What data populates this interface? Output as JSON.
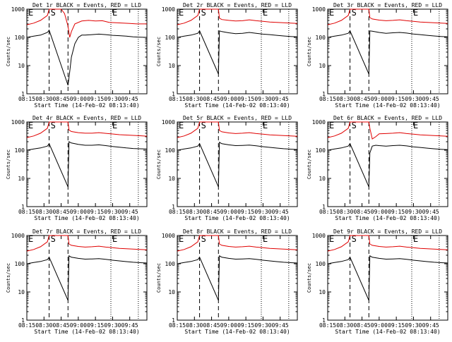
{
  "shared": {
    "xticks": [
      "08:15",
      "08:30",
      "08:45",
      "09:00",
      "09:15",
      "09:30",
      "09:45"
    ],
    "yticks": [
      "1",
      "10",
      "100",
      "1000"
    ],
    "ylabel": "Counts/sec",
    "xlabel": "Start Time (14-Feb-02 08:13:40)",
    "markers": {
      "E": "E",
      "S": "S"
    },
    "colors": {
      "events": "#000000",
      "lld": "#e00000"
    },
    "xlim_minutes_after_0815": [
      0,
      35
    ],
    "ylim": [
      1,
      1000
    ],
    "yscale": "log",
    "vlines_dashed_minutes": [
      6.5,
      12
    ],
    "vlines_dotted_minutes": [
      24.5,
      32.5
    ]
  },
  "chart_data": [
    {
      "type": "line",
      "title": "Det 1r BLACK = Events, RED = LLD",
      "dip": "deep",
      "series": [
        {
          "name": "Events",
          "x": [
            0,
            2,
            4,
            6,
            6.5,
            12,
            12.5,
            13,
            14,
            15,
            16,
            17,
            19,
            21,
            23,
            25,
            27,
            29,
            31,
            33,
            35
          ],
          "y": [
            100,
            110,
            120,
            150,
            180,
            2,
            6,
            20,
            60,
            100,
            120,
            120,
            125,
            130,
            125,
            118,
            115,
            110,
            105,
            102,
            100
          ]
        },
        {
          "name": "LLD",
          "x": [
            0,
            2,
            4,
            6,
            6.5,
            10,
            11,
            12,
            12.5,
            13,
            14,
            16,
            18,
            20,
            22,
            24,
            26,
            28,
            30,
            32,
            35
          ],
          "y": [
            280,
            320,
            400,
            600,
            1000,
            1000,
            700,
            250,
            100,
            160,
            300,
            380,
            400,
            380,
            390,
            340,
            330,
            320,
            310,
            300,
            300
          ]
        }
      ]
    },
    {
      "type": "line",
      "title": "Det 2r BLACK = Events, RED = LLD",
      "dip": "none",
      "series": [
        {
          "name": "Events",
          "x": [
            0,
            2,
            4,
            6,
            6.5,
            12,
            12.3,
            13,
            15,
            17,
            19,
            21,
            23,
            25,
            27,
            29,
            31,
            33,
            35
          ],
          "y": [
            100,
            110,
            120,
            140,
            170,
            5,
            170,
            160,
            145,
            135,
            140,
            150,
            140,
            130,
            125,
            118,
            112,
            108,
            105
          ],
          "_": ""
        },
        {
          "name": "LLD",
          "x": [
            0,
            2,
            4,
            6,
            6.5,
            12,
            12.3,
            13,
            15,
            17,
            19,
            21,
            23,
            25,
            27,
            29,
            31,
            33,
            35
          ],
          "y": [
            280,
            320,
            400,
            600,
            1000,
            1000,
            480,
            430,
            400,
            380,
            390,
            420,
            390,
            370,
            350,
            340,
            330,
            320,
            310
          ]
        }
      ]
    },
    {
      "type": "line",
      "title": "Det 3r BLACK = Events, RED = LLD",
      "dip": "none",
      "series": [
        {
          "name": "Events",
          "x": [
            0,
            2,
            4,
            6,
            6.5,
            12,
            12.3,
            13,
            15,
            17,
            19,
            21,
            23,
            25,
            27,
            29,
            31,
            33,
            35
          ],
          "y": [
            100,
            110,
            120,
            140,
            170,
            5,
            170,
            165,
            150,
            140,
            145,
            150,
            142,
            132,
            125,
            118,
            112,
            108,
            105
          ]
        },
        {
          "name": "LLD",
          "x": [
            0,
            2,
            4,
            6,
            6.5,
            12,
            12.3,
            13,
            15,
            17,
            19,
            21,
            23,
            25,
            27,
            29,
            31,
            33,
            35
          ],
          "y": [
            280,
            320,
            400,
            600,
            1000,
            1000,
            500,
            450,
            410,
            390,
            400,
            420,
            390,
            370,
            350,
            340,
            330,
            320,
            310
          ]
        }
      ]
    },
    {
      "type": "line",
      "title": "Det 4r BLACK = Events, RED = LLD",
      "dip": "none",
      "series": [
        {
          "name": "Events",
          "x": [
            0,
            2,
            4,
            6,
            6.5,
            12,
            12.3,
            13,
            15,
            17,
            19,
            21,
            23,
            25,
            27,
            29,
            31,
            33,
            35
          ],
          "y": [
            100,
            110,
            120,
            140,
            170,
            5,
            200,
            180,
            160,
            150,
            150,
            155,
            145,
            135,
            128,
            120,
            115,
            112,
            110
          ]
        },
        {
          "name": "LLD",
          "x": [
            0,
            2,
            4,
            6,
            6.5,
            12,
            12.3,
            13,
            15,
            17,
            19,
            21,
            23,
            25,
            27,
            29,
            31,
            33,
            35
          ],
          "y": [
            280,
            320,
            400,
            600,
            1000,
            1000,
            520,
            460,
            420,
            400,
            400,
            420,
            395,
            375,
            355,
            345,
            335,
            325,
            315
          ]
        }
      ]
    },
    {
      "type": "line",
      "title": "Det 5r BLACK = Events, RED = LLD",
      "dip": "none",
      "series": [
        {
          "name": "Events",
          "x": [
            0,
            2,
            4,
            6,
            6.5,
            12,
            12.3,
            13,
            15,
            17,
            19,
            21,
            23,
            25,
            27,
            29,
            31,
            33,
            35
          ],
          "y": [
            100,
            110,
            120,
            140,
            170,
            5,
            190,
            170,
            155,
            145,
            148,
            152,
            143,
            133,
            126,
            119,
            113,
            109,
            106
          ]
        },
        {
          "name": "LLD",
          "x": [
            0,
            2,
            4,
            6,
            6.5,
            12,
            12.3,
            13,
            15,
            17,
            19,
            21,
            23,
            25,
            27,
            29,
            31,
            33,
            35
          ],
          "y": [
            280,
            320,
            400,
            600,
            1000,
            1000,
            500,
            450,
            410,
            390,
            400,
            420,
            390,
            370,
            350,
            340,
            330,
            320,
            310
          ]
        }
      ]
    },
    {
      "type": "line",
      "title": "Det 6r BLACK = Events, RED = LLD",
      "dip": "mild",
      "series": [
        {
          "name": "Events",
          "x": [
            0,
            2,
            4,
            6,
            6.5,
            12,
            12.3,
            13,
            14,
            15,
            17,
            19,
            21,
            23,
            25,
            27,
            29,
            31,
            33,
            35
          ],
          "y": [
            100,
            110,
            120,
            140,
            170,
            5,
            80,
            140,
            150,
            145,
            140,
            145,
            150,
            142,
            132,
            125,
            118,
            112,
            108,
            105
          ]
        },
        {
          "name": "LLD",
          "x": [
            0,
            2,
            4,
            6,
            6.5,
            12,
            12.3,
            13,
            14,
            15,
            17,
            19,
            21,
            23,
            25,
            27,
            29,
            31,
            33,
            35
          ],
          "y": [
            280,
            320,
            400,
            600,
            1000,
            1000,
            600,
            250,
            300,
            380,
            390,
            400,
            420,
            390,
            370,
            350,
            340,
            330,
            320,
            310
          ]
        }
      ]
    },
    {
      "type": "line",
      "title": "Det 7r BLACK = Events, RED = LLD",
      "dip": "none",
      "series": [
        {
          "name": "Events",
          "x": [
            0,
            2,
            4,
            6,
            6.5,
            12,
            12.3,
            13,
            15,
            17,
            19,
            21,
            23,
            25,
            27,
            29,
            31,
            33,
            35
          ],
          "y": [
            100,
            110,
            120,
            140,
            170,
            5,
            190,
            170,
            155,
            145,
            148,
            152,
            143,
            133,
            126,
            119,
            113,
            109,
            106
          ]
        },
        {
          "name": "LLD",
          "x": [
            0,
            2,
            4,
            6,
            6.5,
            12,
            12.3,
            13,
            15,
            17,
            19,
            21,
            23,
            25,
            27,
            29,
            31,
            33,
            35
          ],
          "y": [
            280,
            320,
            400,
            600,
            1000,
            1000,
            500,
            450,
            410,
            390,
            400,
            420,
            390,
            370,
            350,
            340,
            330,
            320,
            310
          ]
        }
      ]
    },
    {
      "type": "line",
      "title": "Det 8r BLACK = Events, RED = LLD",
      "dip": "none",
      "series": [
        {
          "name": "Events",
          "x": [
            0,
            2,
            4,
            6,
            6.5,
            12,
            12.3,
            13,
            15,
            17,
            19,
            21,
            23,
            25,
            27,
            29,
            31,
            33,
            35
          ],
          "y": [
            100,
            110,
            120,
            140,
            170,
            5,
            190,
            170,
            155,
            145,
            148,
            152,
            143,
            133,
            126,
            119,
            113,
            109,
            106
          ]
        },
        {
          "name": "LLD",
          "x": [
            0,
            2,
            4,
            6,
            6.5,
            12,
            12.3,
            13,
            15,
            17,
            19,
            21,
            23,
            25,
            27,
            29,
            31,
            33,
            35
          ],
          "y": [
            280,
            320,
            400,
            600,
            1000,
            1000,
            500,
            450,
            410,
            390,
            400,
            420,
            390,
            370,
            350,
            340,
            330,
            320,
            310
          ]
        }
      ]
    },
    {
      "type": "line",
      "title": "Det 9r BLACK = Events, RED = LLD",
      "dip": "none",
      "series": [
        {
          "name": "Events",
          "x": [
            0,
            2,
            4,
            6,
            6.5,
            12,
            12.3,
            13,
            15,
            17,
            19,
            21,
            23,
            25,
            27,
            29,
            31,
            33,
            35
          ],
          "y": [
            100,
            110,
            120,
            140,
            170,
            5,
            190,
            170,
            155,
            145,
            148,
            152,
            143,
            133,
            126,
            119,
            113,
            109,
            106
          ]
        },
        {
          "name": "LLD",
          "x": [
            0,
            2,
            4,
            6,
            6.5,
            12,
            12.3,
            13,
            15,
            17,
            19,
            21,
            23,
            25,
            27,
            29,
            31,
            33,
            35
          ],
          "y": [
            280,
            320,
            400,
            600,
            1000,
            1000,
            500,
            450,
            410,
            390,
            400,
            420,
            390,
            370,
            350,
            340,
            330,
            320,
            310
          ]
        }
      ]
    }
  ]
}
